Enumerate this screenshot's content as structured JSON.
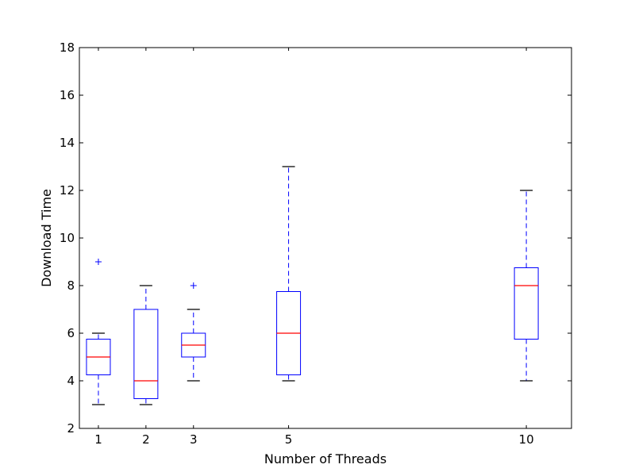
{
  "chart_data": {
    "type": "box",
    "title": "",
    "xlabel": "Number of Threads",
    "ylabel": "Download Time",
    "x_range": [
      0.6,
      10.95
    ],
    "ylim": [
      2,
      18
    ],
    "y_ticks": [
      2,
      4,
      6,
      8,
      10,
      12,
      14,
      16,
      18
    ],
    "grid": false,
    "colors": {
      "box": "#0000ff",
      "median": "#ff0000",
      "whisker": "#0000ff",
      "cap": "#000000",
      "flier": "#0000ff",
      "axes": "#000000"
    },
    "boxes": [
      {
        "x": 1,
        "label": "1",
        "whisker_low": 3,
        "q1": 4.25,
        "median": 5,
        "q3": 5.75,
        "whisker_high": 6,
        "fliers": [
          9
        ]
      },
      {
        "x": 2,
        "label": "2",
        "whisker_low": 3,
        "q1": 3.25,
        "median": 4,
        "q3": 7,
        "whisker_high": 8,
        "fliers": []
      },
      {
        "x": 3,
        "label": "3",
        "whisker_low": 4,
        "q1": 5,
        "median": 5.5,
        "q3": 6,
        "whisker_high": 7,
        "fliers": [
          8
        ]
      },
      {
        "x": 5,
        "label": "5",
        "whisker_low": 4,
        "q1": 4.25,
        "median": 6,
        "q3": 7.75,
        "whisker_high": 13,
        "fliers": []
      },
      {
        "x": 10,
        "label": "10",
        "whisker_low": 4,
        "q1": 5.75,
        "median": 8,
        "q3": 8.75,
        "whisker_high": 12,
        "fliers": []
      }
    ]
  }
}
